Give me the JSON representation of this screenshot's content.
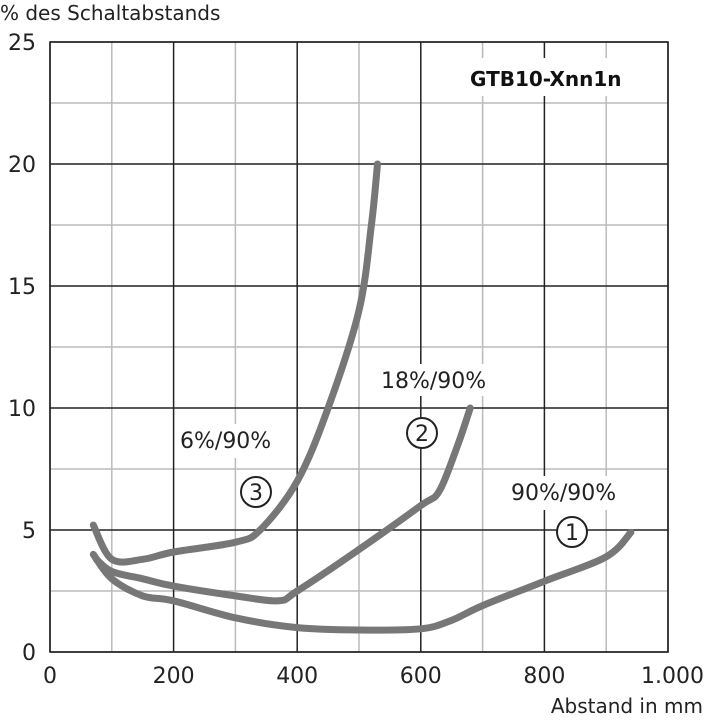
{
  "chart_data": {
    "type": "line",
    "title": "GTB10-Xnn1n",
    "xlabel": "Abstand in mm",
    "ylabel": "% des Schaltabstands",
    "xlim": [
      0,
      1000
    ],
    "ylim": [
      0,
      25
    ],
    "x_ticks": [
      0,
      200,
      400,
      600,
      800,
      1000
    ],
    "x_tick_labels": [
      "0",
      "200",
      "400",
      "600",
      "800",
      "1.000"
    ],
    "y_ticks": [
      0,
      5,
      10,
      15,
      20,
      25
    ],
    "y_tick_labels": [
      "0",
      "5",
      "10",
      "15",
      "20",
      "25"
    ],
    "grid": true,
    "colors": {
      "curve": "#777777",
      "grid_major": "#222222",
      "grid_minor": "#bbbbbb"
    },
    "series": [
      {
        "id": "1",
        "name": "90%/90%",
        "number": "1",
        "points": [
          [
            70,
            4.0
          ],
          [
            100,
            3.0
          ],
          [
            150,
            2.3
          ],
          [
            200,
            2.1
          ],
          [
            300,
            1.4
          ],
          [
            400,
            1.0
          ],
          [
            500,
            0.9
          ],
          [
            600,
            0.95
          ],
          [
            650,
            1.3
          ],
          [
            700,
            1.9
          ],
          [
            800,
            2.9
          ],
          [
            900,
            3.9
          ],
          [
            940,
            4.9
          ]
        ]
      },
      {
        "id": "2",
        "name": "18%/90%",
        "number": "2",
        "points": [
          [
            75,
            3.8
          ],
          [
            100,
            3.3
          ],
          [
            150,
            3.0
          ],
          [
            200,
            2.7
          ],
          [
            300,
            2.3
          ],
          [
            370,
            2.1
          ],
          [
            400,
            2.5
          ],
          [
            500,
            4.2
          ],
          [
            600,
            6.0
          ],
          [
            630,
            6.6
          ],
          [
            660,
            8.5
          ],
          [
            680,
            10.0
          ]
        ]
      },
      {
        "id": "3",
        "name": "6%/90%",
        "number": "3",
        "points": [
          [
            70,
            5.2
          ],
          [
            100,
            3.8
          ],
          [
            150,
            3.8
          ],
          [
            200,
            4.1
          ],
          [
            300,
            4.5
          ],
          [
            340,
            5.0
          ],
          [
            400,
            7.0
          ],
          [
            450,
            10.0
          ],
          [
            500,
            14.0
          ],
          [
            520,
            17.5
          ],
          [
            530,
            20.0
          ]
        ]
      }
    ]
  }
}
